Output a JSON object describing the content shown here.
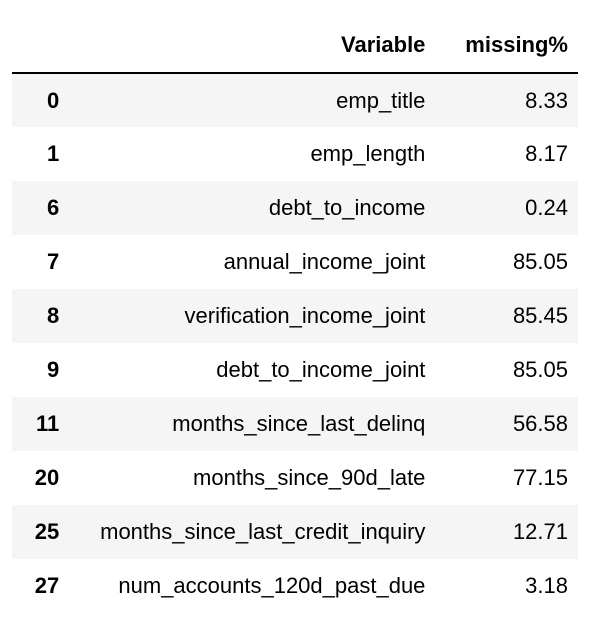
{
  "table": {
    "columns": [
      "",
      "Variable",
      "missing%"
    ],
    "rows": [
      {
        "index": "0",
        "variable": "emp_title",
        "missing": "8.33"
      },
      {
        "index": "1",
        "variable": "emp_length",
        "missing": "8.17"
      },
      {
        "index": "6",
        "variable": "debt_to_income",
        "missing": "0.24"
      },
      {
        "index": "7",
        "variable": "annual_income_joint",
        "missing": "85.05"
      },
      {
        "index": "8",
        "variable": "verification_income_joint",
        "missing": "85.45"
      },
      {
        "index": "9",
        "variable": "debt_to_income_joint",
        "missing": "85.05"
      },
      {
        "index": "11",
        "variable": "months_since_last_delinq",
        "missing": "56.58"
      },
      {
        "index": "20",
        "variable": "months_since_90d_late",
        "missing": "77.15"
      },
      {
        "index": "25",
        "variable": "months_since_last_credit_inquiry",
        "missing": "12.71"
      },
      {
        "index": "27",
        "variable": "num_accounts_120d_past_due",
        "missing": "3.18"
      }
    ]
  },
  "colors": {
    "text": "#000000",
    "stripe": "#f5f5f5",
    "background": "#ffffff"
  }
}
